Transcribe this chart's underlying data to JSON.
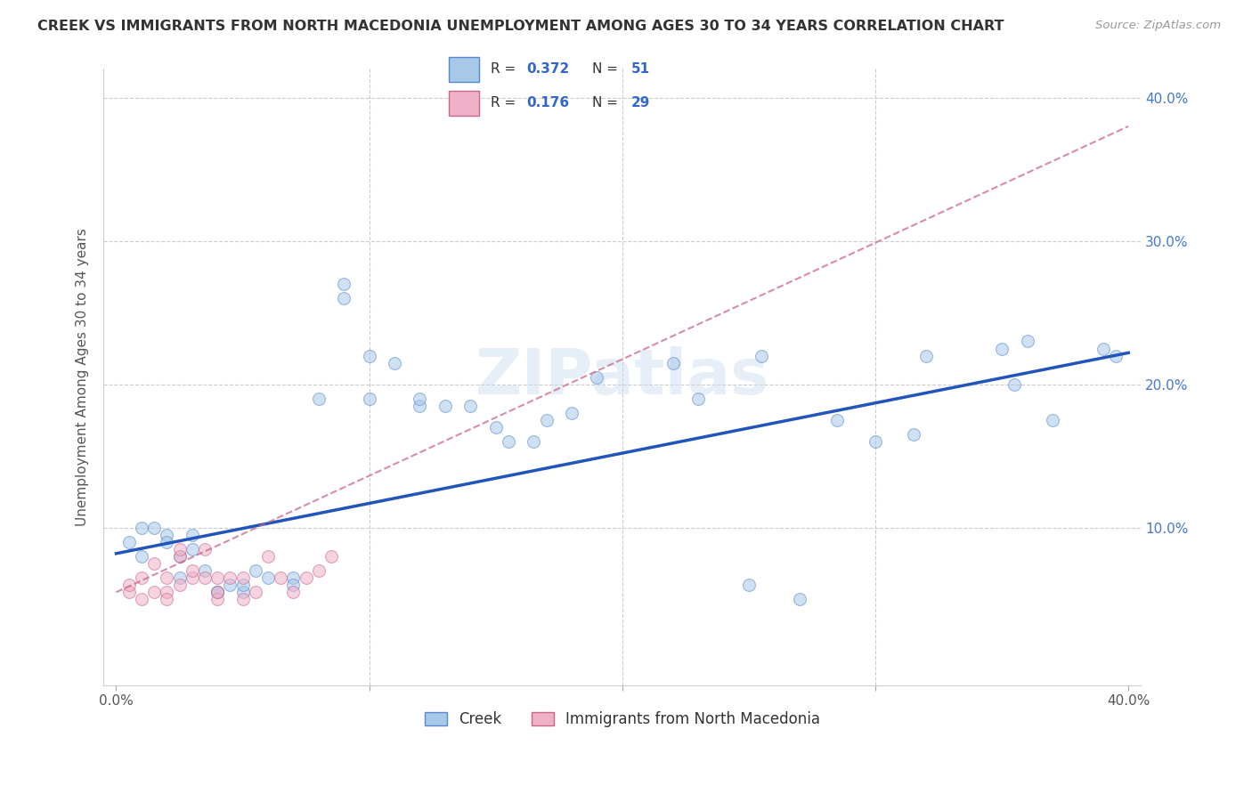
{
  "title": "CREEK VS IMMIGRANTS FROM NORTH MACEDONIA UNEMPLOYMENT AMONG AGES 30 TO 34 YEARS CORRELATION CHART",
  "source": "Source: ZipAtlas.com",
  "ylabel": "Unemployment Among Ages 30 to 34 years",
  "legend_label1": "Creek",
  "legend_label2": "Immigrants from North Macedonia",
  "watermark": "ZIPatlas",
  "creek_color": "#a8c8e8",
  "creek_edge_color": "#5588cc",
  "nmacedonia_color": "#f0b0c8",
  "nmacedonia_edge_color": "#cc6688",
  "creek_line_color": "#2255bb",
  "nmacedonia_line_color": "#cc8899",
  "creek_scatter_x": [
    0.005,
    0.01,
    0.01,
    0.015,
    0.02,
    0.02,
    0.025,
    0.025,
    0.03,
    0.03,
    0.035,
    0.04,
    0.04,
    0.045,
    0.05,
    0.05,
    0.055,
    0.06,
    0.07,
    0.07,
    0.08,
    0.09,
    0.09,
    0.1,
    0.1,
    0.11,
    0.12,
    0.12,
    0.13,
    0.14,
    0.15,
    0.155,
    0.165,
    0.17,
    0.18,
    0.19,
    0.22,
    0.23,
    0.25,
    0.255,
    0.27,
    0.285,
    0.3,
    0.315,
    0.32,
    0.35,
    0.355,
    0.36,
    0.37,
    0.39,
    0.395
  ],
  "creek_scatter_y": [
    0.09,
    0.08,
    0.1,
    0.1,
    0.095,
    0.09,
    0.065,
    0.08,
    0.085,
    0.095,
    0.07,
    0.055,
    0.055,
    0.06,
    0.055,
    0.06,
    0.07,
    0.065,
    0.065,
    0.06,
    0.19,
    0.26,
    0.27,
    0.19,
    0.22,
    0.215,
    0.185,
    0.19,
    0.185,
    0.185,
    0.17,
    0.16,
    0.16,
    0.175,
    0.18,
    0.205,
    0.215,
    0.19,
    0.06,
    0.22,
    0.05,
    0.175,
    0.16,
    0.165,
    0.22,
    0.225,
    0.2,
    0.23,
    0.175,
    0.225,
    0.22
  ],
  "nmacedonia_scatter_x": [
    0.005,
    0.005,
    0.01,
    0.01,
    0.015,
    0.015,
    0.02,
    0.02,
    0.02,
    0.025,
    0.025,
    0.025,
    0.03,
    0.03,
    0.035,
    0.035,
    0.04,
    0.04,
    0.04,
    0.045,
    0.05,
    0.05,
    0.055,
    0.06,
    0.065,
    0.07,
    0.075,
    0.08,
    0.085
  ],
  "nmacedonia_scatter_y": [
    0.055,
    0.06,
    0.05,
    0.065,
    0.055,
    0.075,
    0.055,
    0.065,
    0.05,
    0.06,
    0.08,
    0.085,
    0.065,
    0.07,
    0.065,
    0.085,
    0.05,
    0.065,
    0.055,
    0.065,
    0.065,
    0.05,
    0.055,
    0.08,
    0.065,
    0.055,
    0.065,
    0.07,
    0.08
  ],
  "background_color": "#ffffff",
  "grid_color": "#cccccc",
  "title_color": "#333333",
  "source_color": "#999999",
  "marker_size": 100,
  "marker_alpha": 0.55,
  "xlim": [
    -0.005,
    0.405
  ],
  "ylim": [
    -0.01,
    0.42
  ],
  "creek_line_x0": 0.0,
  "creek_line_x1": 0.4,
  "creek_line_y0": 0.082,
  "creek_line_y1": 0.222,
  "nmac_line_x0": 0.0,
  "nmac_line_x1": 0.4,
  "nmac_line_y0": 0.055,
  "nmac_line_y1": 0.38
}
